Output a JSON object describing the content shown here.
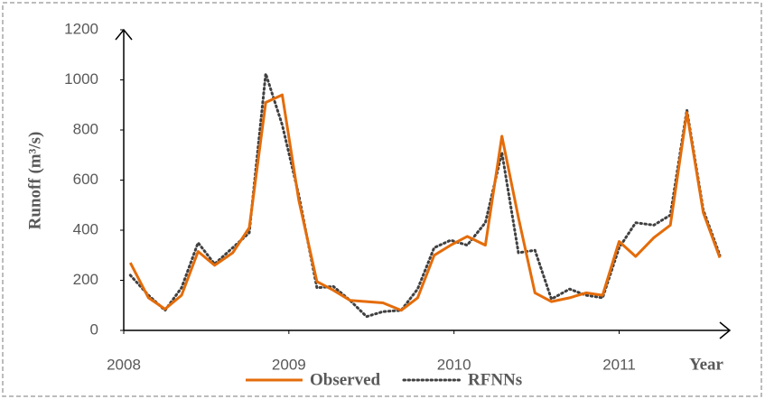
{
  "chart_data": {
    "type": "line",
    "y_label": "Runoff (m³/s)",
    "x_label": "Year",
    "x": [
      2008.04,
      2008.15,
      2008.25,
      2008.35,
      2008.45,
      2008.55,
      2008.66,
      2008.76,
      2008.86,
      2008.96,
      2009.06,
      2009.17,
      2009.27,
      2009.37,
      2009.47,
      2009.57,
      2009.68,
      2009.78,
      2009.88,
      2009.98,
      2010.08,
      2010.19,
      2010.29,
      2010.39,
      2010.49,
      2010.59,
      2010.7,
      2010.8,
      2010.9,
      2011.0,
      2011.1,
      2011.21,
      2011.31,
      2011.41,
      2011.51,
      2011.61
    ],
    "series": [
      {
        "name": "Observed",
        "color": "#e46c0a",
        "style": "solid",
        "values": [
          270,
          130,
          85,
          140,
          315,
          260,
          310,
          410,
          910,
          940,
          520,
          195,
          160,
          120,
          115,
          110,
          80,
          130,
          300,
          340,
          375,
          340,
          775,
          450,
          150,
          115,
          130,
          150,
          140,
          355,
          295,
          370,
          420,
          870,
          470,
          290
        ]
      },
      {
        "name": "RFNNs",
        "color": "#404040",
        "style": "dotted",
        "values": [
          220,
          140,
          80,
          170,
          350,
          265,
          330,
          390,
          1025,
          820,
          540,
          170,
          175,
          120,
          55,
          75,
          80,
          165,
          330,
          360,
          340,
          430,
          710,
          310,
          320,
          125,
          165,
          140,
          130,
          330,
          430,
          420,
          460,
          880,
          480,
          300
        ]
      }
    ],
    "xlim": [
      2008,
      2011.67
    ],
    "xticks": [
      2008,
      2009,
      2010,
      2011
    ],
    "ylim": [
      0,
      1200
    ],
    "yticks": [
      0,
      200,
      400,
      600,
      800,
      1000,
      1200
    ],
    "grid": false,
    "legend": "bottom"
  }
}
